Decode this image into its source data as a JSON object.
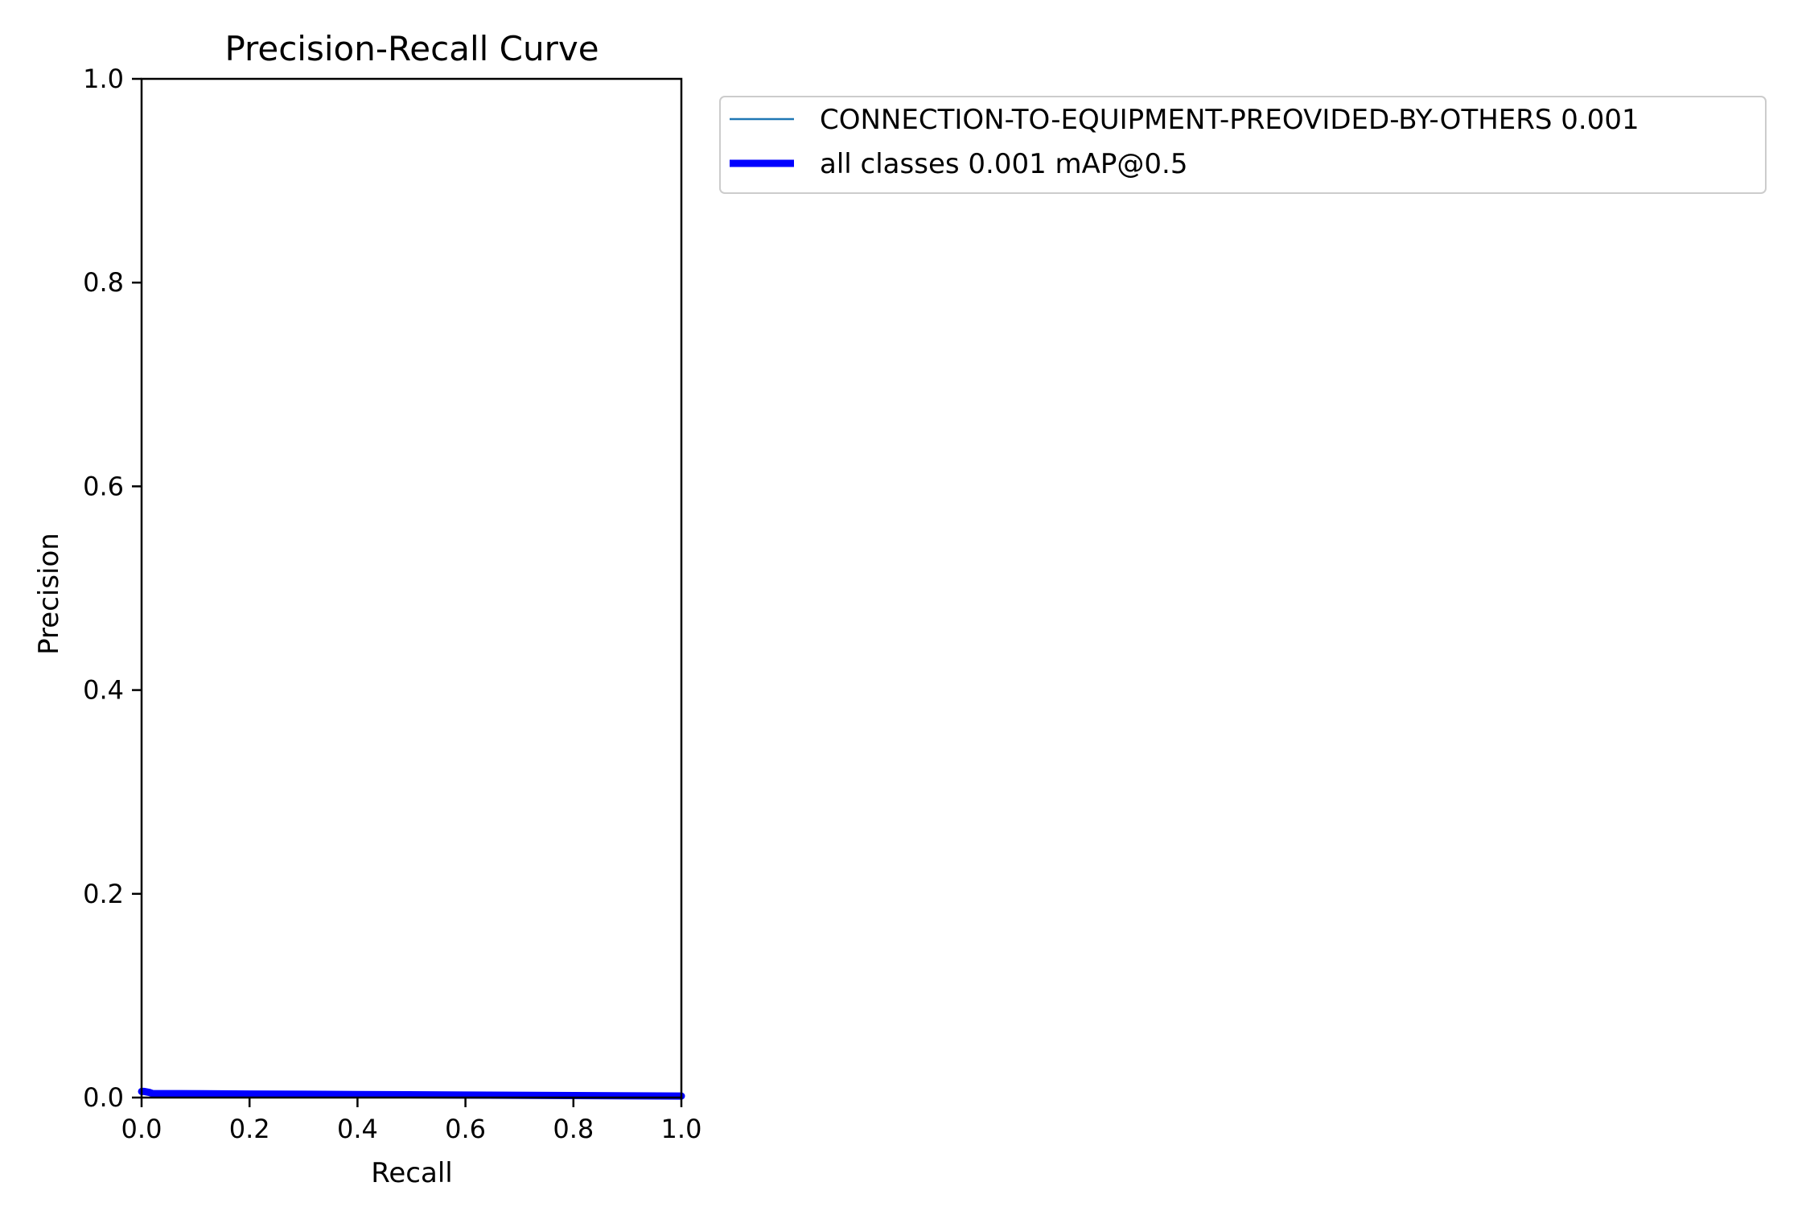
{
  "chart_data": {
    "type": "line",
    "title": "Precision-Recall Curve",
    "xlabel": "Recall",
    "ylabel": "Precision",
    "xlim": [
      0.0,
      1.0
    ],
    "ylim": [
      0.0,
      1.0
    ],
    "x_ticks": [
      "0.0",
      "0.2",
      "0.4",
      "0.6",
      "0.8",
      "1.0"
    ],
    "y_ticks": [
      "0.0",
      "0.2",
      "0.4",
      "0.6",
      "0.8",
      "1.0"
    ],
    "x_tick_values": [
      0.0,
      0.2,
      0.4,
      0.6,
      0.8,
      1.0
    ],
    "y_tick_values": [
      0.0,
      0.2,
      0.4,
      0.6,
      0.8,
      1.0
    ],
    "grid": false,
    "legend_position": "outside-right-top",
    "series": [
      {
        "name": "CONNECTION-TO-EQUIPMENT-PREOVIDED-BY-OTHERS 0.001",
        "color": "#1f77b4",
        "style": "thin",
        "x": [
          0.0,
          0.005,
          0.015,
          0.02,
          0.2,
          0.4,
          0.6,
          0.8,
          1.0
        ],
        "y": [
          0.006,
          0.006,
          0.005,
          0.004,
          0.0035,
          0.003,
          0.0025,
          0.002,
          0.0015
        ]
      },
      {
        "name": "all classes 0.001 mAP@0.5",
        "color": "#0000ff",
        "style": "thick",
        "x": [
          0.0,
          0.005,
          0.015,
          0.02,
          0.2,
          0.4,
          0.6,
          0.8,
          1.0
        ],
        "y": [
          0.006,
          0.006,
          0.005,
          0.004,
          0.0035,
          0.003,
          0.0025,
          0.002,
          0.0015
        ]
      }
    ]
  }
}
